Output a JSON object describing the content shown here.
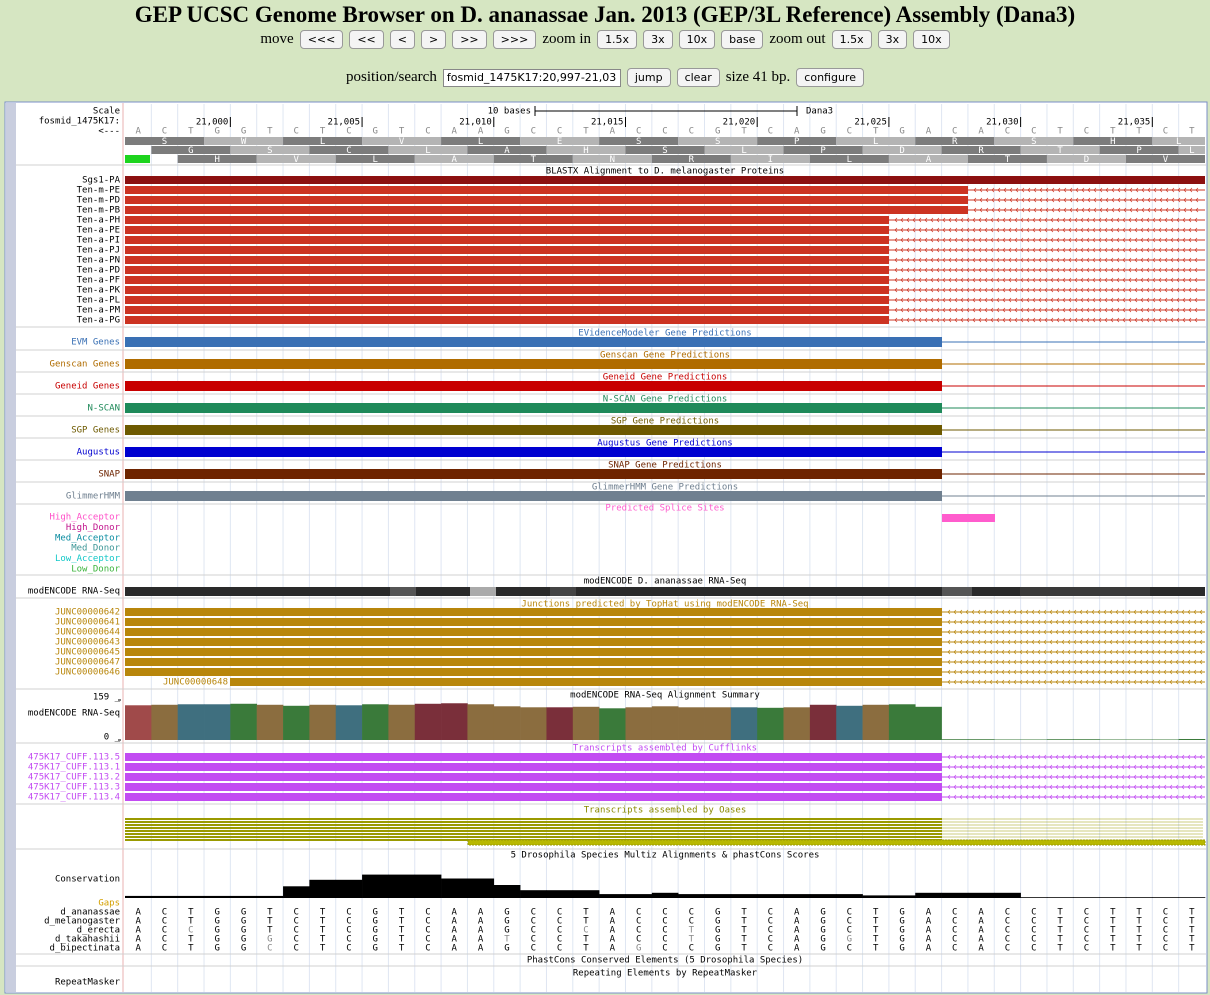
{
  "header": {
    "title": "GEP UCSC Genome Browser on D. ananassae Jan. 2013 (GEP/3L Reference) Assembly (Dana3)",
    "move_label": "move",
    "move_buttons": [
      "<<<",
      "<<",
      "<",
      ">",
      ">>",
      ">>>"
    ],
    "zoom_in_label": "zoom in",
    "zoom_in_buttons": [
      "1.5x",
      "3x",
      "10x",
      "base"
    ],
    "zoom_out_label": "zoom out",
    "zoom_out_buttons": [
      "1.5x",
      "3x",
      "10x"
    ],
    "position_label": "position/search",
    "position_value": "fosmid_1475K17:20,997-21,03",
    "jump": "jump",
    "clear": "clear",
    "size": "size 41 bp.",
    "configure": "configure"
  },
  "ruler": {
    "scale_label": "Scale",
    "scale_text": "10 bases",
    "assembly": "Dana3",
    "chrom_label": "fosmid_1475K17:",
    "strand_label": "<---",
    "xlim": [
      20997,
      21037
    ],
    "xticks": [
      {
        "value": 21000,
        "label": "21,000"
      },
      {
        "value": 21005,
        "label": "21,005"
      },
      {
        "value": 21010,
        "label": "21,010"
      },
      {
        "value": 21015,
        "label": "21,015"
      },
      {
        "value": 21020,
        "label": "21,020"
      },
      {
        "value": 21025,
        "label": "21,025"
      },
      {
        "value": 21030,
        "label": "21,030"
      },
      {
        "value": 21035,
        "label": "21,035"
      }
    ],
    "sequence": "ACTGGTCTCGTCAAGCCTACCCGTCAGCTGACACCTCTTCT",
    "frames": [
      [
        "S",
        "W",
        "L",
        "V",
        "L",
        "E",
        "S",
        "S",
        "P",
        "L",
        "R",
        "S",
        "H",
        "L"
      ],
      [
        "G",
        "S",
        "C",
        "L",
        "A",
        "H",
        "S",
        "L",
        "P",
        "D",
        "R",
        "T",
        "P",
        "L"
      ],
      [
        "H",
        "V",
        "L",
        "A",
        "T",
        "N",
        "R",
        "I",
        "L",
        "A",
        "T",
        "D",
        "V",
        "Q"
      ]
    ]
  },
  "tracks": {
    "blastx": {
      "title": "BLASTX Alignment to D. melanogaster Proteins",
      "items": [
        "Sgs1-PA",
        "Ten-m-PE",
        "Ten-m-PD",
        "Ten-m-PB",
        "Ten-a-PH",
        "Ten-a-PE",
        "Ten-a-PI",
        "Ten-a-PJ",
        "Ten-a-PN",
        "Ten-a-PD",
        "Ten-a-PF",
        "Ten-a-PK",
        "Ten-a-PL",
        "Ten-a-PM",
        "Ten-a-PG"
      ]
    },
    "gene_predictions": [
      {
        "label": "EVM Genes",
        "title": "EVidenceModeler Gene Predictions",
        "color": "#3a70b4"
      },
      {
        "label": "Genscan Genes",
        "title": "Genscan Gene Predictions",
        "color": "#b06c00"
      },
      {
        "label": "Geneid Genes",
        "title": "Geneid Gene Predictions",
        "color": "#c80000"
      },
      {
        "label": "N-SCAN",
        "title": "N-SCAN Gene Predictions",
        "color": "#1f8a5a"
      },
      {
        "label": "SGP Genes",
        "title": "SGP Gene Predictions",
        "color": "#6e5a00"
      },
      {
        "label": "Augustus",
        "title": "Augustus Gene Predictions",
        "color": "#0000d0"
      },
      {
        "label": "SNAP",
        "title": "SNAP Gene Predictions",
        "color": "#6e2400"
      },
      {
        "label": "GlimmerHMM",
        "title": "GlimmerHMM Gene Predictions",
        "color": "#708090"
      }
    ],
    "splice": {
      "title": "Predicted Splice Sites",
      "color": "#ff5ccd",
      "items": [
        {
          "name": "High_Acceptor",
          "color": "#ff4fc8"
        },
        {
          "name": "High_Donor",
          "color": "#c0148c"
        },
        {
          "name": "Med_Acceptor",
          "color": "#0a8ca0"
        },
        {
          "name": "Med_Donor",
          "color": "#3c9696"
        },
        {
          "name": "Low_Acceptor",
          "color": "#14c8c8"
        },
        {
          "name": "Low_Donor",
          "color": "#3cb43c"
        }
      ]
    },
    "rnaseq": {
      "label": "modENCODE RNA-Seq",
      "title": "modENCODE D. ananassae RNA-Seq"
    },
    "junctions": {
      "title": "Junctions predicted by TopHat using modENCODE RNA-Seq",
      "color": "#b8860b",
      "items": [
        "JUNC00000642",
        "JUNC00000641",
        "JUNC00000644",
        "JUNC00000643",
        "JUNC00000645",
        "JUNC00000647",
        "JUNC00000646"
      ],
      "extra": "JUNC00000648"
    },
    "coverage": {
      "label": "modENCODE RNA-Seq",
      "title": "modENCODE RNA-Seq Alignment Summary",
      "ylim": [
        0,
        159
      ],
      "yticks": [
        {
          "value": 0,
          "label": "0 _"
        },
        {
          "value": 159,
          "label": "159 _"
        }
      ],
      "values": [
        138,
        140,
        142,
        142,
        144,
        140,
        136,
        140,
        138,
        142,
        140,
        144,
        146,
        142,
        134,
        130,
        130,
        132,
        126,
        130,
        134,
        130,
        130,
        130,
        128,
        130,
        140,
        136,
        140,
        142,
        132,
        3,
        3,
        2,
        2,
        3,
        3,
        2,
        2,
        2,
        4
      ],
      "colors": [
        "#a04a4a",
        "#8b6d3f",
        "#3f6f7f",
        "#3f6f7f",
        "#3a7a3a",
        "#8b6d3f",
        "#3a7a3a",
        "#8b6d3f",
        "#3f6f7f",
        "#3a7a3a",
        "#8b6d3f",
        "#7a2f3a",
        "#7a2f3a",
        "#8b6d3f",
        "#8b6d3f",
        "#8b6d3f",
        "#7a2f3a",
        "#8b6d3f",
        "#3a7a3a",
        "#8b6d3f",
        "#8b6d3f",
        "#8b6d3f",
        "#8b6d3f",
        "#3f6f7f",
        "#3a7a3a",
        "#8b6d3f",
        "#7a2f3a",
        "#3f6f7f",
        "#8b6d3f",
        "#3a7a3a",
        "#3a7a3a",
        "#3a7a3a",
        "#3a7a3a",
        "#3a7a3a",
        "#3a7a3a",
        "#3a7a3a",
        "#3a7a3a",
        "#3a7a3a",
        "#3a7a3a",
        "#3a7a3a",
        "#3a7a3a"
      ]
    },
    "cufflinks": {
      "title": "Transcripts assembled by Cufflinks",
      "color": "#c24bf2",
      "items": [
        "475K17_CUFF.113.5",
        "475K17_CUFF.113.1",
        "475K17_CUFF.113.2",
        "475K17_CUFF.113.3",
        "475K17_CUFF.113.4"
      ]
    },
    "oases": {
      "title": "Transcripts assembled by Oases",
      "color": "#9a9a00"
    },
    "conservation": {
      "title": "5 Drosophila Species Multiz Alignments & phastCons Scores",
      "label": "Conservation",
      "gaps": "Gaps",
      "ylim": [
        0,
        1
      ],
      "values": [
        0.08,
        0.08,
        0.08,
        0.08,
        0.08,
        0.08,
        0.45,
        0.7,
        0.7,
        0.9,
        0.9,
        0.9,
        0.75,
        0.75,
        0.5,
        0.3,
        0.3,
        0.3,
        0.15,
        0.15,
        0.2,
        0.15,
        0.15,
        0.15,
        0.15,
        0.15,
        0.15,
        0.15,
        0.1,
        0.1,
        0.2,
        0.2,
        0.2,
        0.2,
        0.03,
        0.03,
        0.03,
        0.03,
        0.03,
        0.03,
        0.03
      ],
      "species": [
        {
          "name": "d_ananassae",
          "sequence": "ACTGGTCTCGTCAAGCCTACCCGTCAGCTGACACCTCTTCT"
        },
        {
          "name": "d_melanogaster",
          "sequence": "ACTGGTCTCGTCAAGCCTACCCGTCAGCTGACACCTCTTCT"
        },
        {
          "name": "d_erecta",
          "sequence": "ACCGGTCTCGTCAAGCCCACCTGTCAGCTGACACCTCTTCT"
        },
        {
          "name": "d_takahashii",
          "sequence": "ACTGGGCTCGTCAATCCTACCTGTCAGGTGACACCTCTTCT"
        },
        {
          "name": "d_bipectinata",
          "sequence": "ACTGGCCTCGTCAAGCCTAGCCGTCAGCTGACACCTCTTCT"
        }
      ]
    },
    "phastcons": {
      "title": "PhastCons Conserved Elements (5 Drosophila Species)"
    },
    "repeatmasker": {
      "title": "Repeating Elements by RepeatMasker",
      "label": "RepeatMasker"
    }
  }
}
